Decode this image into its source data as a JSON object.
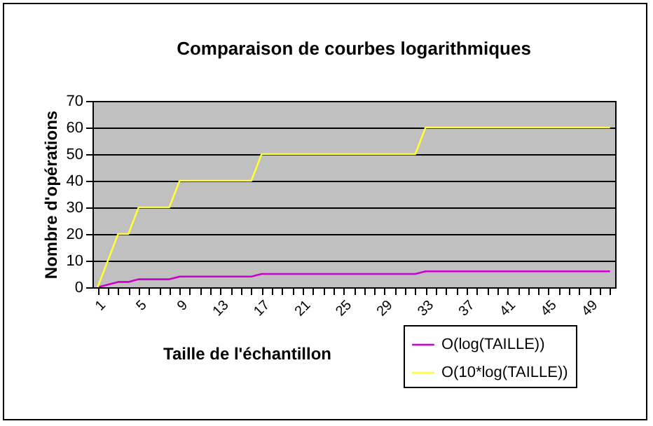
{
  "chart_data": {
    "type": "line",
    "title": "Comparaison de courbes logarithmiques",
    "xlabel": "Taille de l'échantillon",
    "ylabel": "Nombre d'opérations",
    "categories": [
      "1",
      null,
      null,
      null,
      "5",
      null,
      null,
      null,
      "9",
      null,
      null,
      null,
      "13",
      null,
      null,
      null,
      "17",
      null,
      null,
      null,
      "21",
      null,
      null,
      null,
      "25",
      null,
      null,
      null,
      "29",
      null,
      null,
      null,
      "33",
      null,
      null,
      null,
      "37",
      null,
      null,
      null,
      "41",
      null,
      null,
      null,
      "45",
      null,
      null,
      null,
      "49",
      null,
      null
    ],
    "series": [
      {
        "name": "O(log(TAILLE))",
        "color": "#cc00cc",
        "values": [
          0,
          1,
          2,
          2,
          3,
          3,
          3,
          3,
          4,
          4,
          4,
          4,
          4,
          4,
          4,
          4,
          5,
          5,
          5,
          5,
          5,
          5,
          5,
          5,
          5,
          5,
          5,
          5,
          5,
          5,
          5,
          5,
          6,
          6,
          6,
          6,
          6,
          6,
          6,
          6,
          6,
          6,
          6,
          6,
          6,
          6,
          6,
          6,
          6,
          6,
          6
        ]
      },
      {
        "name": "O(10*log(TAILLE))",
        "color": "#ffff33",
        "values": [
          0,
          10,
          20,
          20,
          30,
          30,
          30,
          30,
          40,
          40,
          40,
          40,
          40,
          40,
          40,
          40,
          50,
          50,
          50,
          50,
          50,
          50,
          50,
          50,
          50,
          50,
          50,
          50,
          50,
          50,
          50,
          50,
          60,
          60,
          60,
          60,
          60,
          60,
          60,
          60,
          60,
          60,
          60,
          60,
          60,
          60,
          60,
          60,
          60,
          60,
          60
        ]
      }
    ],
    "ylim": [
      0,
      70
    ],
    "yticks": [
      0,
      10,
      20,
      30,
      40,
      50,
      60,
      70
    ],
    "grid": "y",
    "legend": "bottom right",
    "marker": "none",
    "line_style": "solid"
  }
}
